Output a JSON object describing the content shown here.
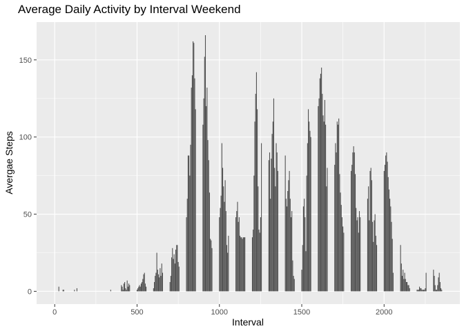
{
  "chart_data": {
    "type": "bar",
    "title": "Average Daily Activity by Interval Weekend",
    "xlabel": "Interval",
    "ylabel": "Avergae Steps",
    "xlim": [
      -110,
      2460
    ],
    "ylim": [
      -8.3,
      174.5
    ],
    "x_ticks": [
      0,
      500,
      1000,
      1500,
      2000
    ],
    "y_ticks": [
      0,
      50,
      100,
      150
    ],
    "grid": true,
    "colors": {
      "bar": "#4d4d4d",
      "panel": "#ebebeb",
      "grid": "#ffffff"
    },
    "x": [
      0,
      5,
      10,
      15,
      20,
      25,
      30,
      35,
      40,
      45,
      50,
      55,
      100,
      105,
      110,
      115,
      120,
      125,
      130,
      135,
      140,
      145,
      150,
      155,
      200,
      205,
      210,
      215,
      220,
      225,
      230,
      235,
      240,
      245,
      250,
      255,
      300,
      305,
      310,
      315,
      320,
      325,
      330,
      335,
      340,
      345,
      350,
      355,
      400,
      405,
      410,
      415,
      420,
      425,
      430,
      435,
      440,
      445,
      450,
      455,
      500,
      505,
      510,
      515,
      520,
      525,
      530,
      535,
      540,
      545,
      550,
      555,
      600,
      605,
      610,
      615,
      620,
      625,
      630,
      635,
      640,
      645,
      650,
      655,
      700,
      705,
      710,
      715,
      720,
      725,
      730,
      735,
      740,
      745,
      750,
      755,
      800,
      805,
      810,
      815,
      820,
      825,
      830,
      835,
      840,
      845,
      850,
      855,
      900,
      905,
      910,
      915,
      920,
      925,
      930,
      935,
      940,
      945,
      950,
      955,
      1000,
      1005,
      1010,
      1015,
      1020,
      1025,
      1030,
      1035,
      1040,
      1045,
      1050,
      1055,
      1100,
      1105,
      1110,
      1115,
      1120,
      1125,
      1130,
      1135,
      1140,
      1145,
      1150,
      1155,
      1200,
      1205,
      1210,
      1215,
      1220,
      1225,
      1230,
      1235,
      1240,
      1245,
      1250,
      1255,
      1300,
      1305,
      1310,
      1315,
      1320,
      1325,
      1330,
      1335,
      1340,
      1345,
      1350,
      1355,
      1400,
      1405,
      1410,
      1415,
      1420,
      1425,
      1430,
      1435,
      1440,
      1445,
      1450,
      1455,
      1500,
      1505,
      1510,
      1515,
      1520,
      1525,
      1530,
      1535,
      1540,
      1545,
      1550,
      1555,
      1600,
      1605,
      1610,
      1615,
      1620,
      1625,
      1630,
      1635,
      1640,
      1645,
      1650,
      1655,
      1700,
      1705,
      1710,
      1715,
      1720,
      1725,
      1730,
      1735,
      1740,
      1745,
      1750,
      1755,
      1800,
      1805,
      1810,
      1815,
      1820,
      1825,
      1830,
      1835,
      1840,
      1845,
      1850,
      1855,
      1900,
      1905,
      1910,
      1915,
      1920,
      1925,
      1930,
      1935,
      1940,
      1945,
      1950,
      1955,
      2000,
      2005,
      2010,
      2015,
      2020,
      2025,
      2030,
      2035,
      2040,
      2045,
      2050,
      2055,
      2100,
      2105,
      2110,
      2115,
      2120,
      2125,
      2130,
      2135,
      2140,
      2145,
      2150,
      2155,
      2200,
      2205,
      2210,
      2215,
      2220,
      2225,
      2230,
      2235,
      2240,
      2245,
      2250,
      2255,
      2300,
      2305,
      2310,
      2315,
      2320,
      2325,
      2330,
      2335,
      2340,
      2345,
      2350,
      2355
    ],
    "values": [
      0,
      0,
      0,
      0,
      0,
      3,
      0,
      0,
      0,
      0,
      1,
      1,
      0,
      0,
      0,
      0,
      1,
      0,
      0,
      2,
      0,
      0,
      0,
      0,
      0,
      0,
      0,
      0,
      0,
      0,
      0,
      0,
      0,
      0,
      0,
      0,
      0,
      0,
      0,
      0,
      0,
      0,
      0,
      0,
      1,
      0,
      0,
      0,
      0,
      4,
      3,
      1,
      5,
      6,
      2,
      1,
      7,
      3,
      5,
      4,
      1,
      2,
      3,
      4,
      3,
      5,
      6,
      8,
      11,
      12,
      5,
      3,
      2,
      6,
      10,
      12,
      25,
      14,
      11,
      9,
      15,
      10,
      18,
      12,
      6,
      10,
      22,
      28,
      21,
      24,
      18,
      27,
      30,
      30,
      19,
      16,
      48,
      60,
      88,
      88,
      75,
      95,
      132,
      140,
      162,
      161,
      138,
      118,
      108,
      125,
      152,
      166,
      120,
      132,
      98,
      85,
      64,
      34,
      33,
      28,
      48,
      54,
      62,
      96,
      80,
      68,
      58,
      72,
      52,
      30,
      25,
      36,
      48,
      52,
      58,
      45,
      48,
      36,
      35,
      35,
      34,
      35,
      35,
      35,
      35,
      40,
      75,
      110,
      128,
      142,
      118,
      68,
      40,
      38,
      48,
      96,
      85,
      90,
      60,
      86,
      102,
      110,
      125,
      80,
      68,
      96,
      90,
      78,
      88,
      60,
      55,
      65,
      72,
      78,
      60,
      48,
      52,
      20,
      10,
      8,
      14,
      30,
      55,
      60,
      48,
      26,
      75,
      96,
      118,
      110,
      104,
      100,
      120,
      125,
      138,
      141,
      145,
      128,
      114,
      110,
      124,
      108,
      68,
      80,
      82,
      96,
      90,
      110,
      108,
      112,
      76,
      64,
      56,
      48,
      42,
      38,
      78,
      82,
      90,
      94,
      90,
      76,
      54,
      46,
      48,
      38,
      52,
      48,
      60,
      68,
      46,
      78,
      80,
      72,
      45,
      32,
      46,
      50,
      36,
      30,
      78,
      82,
      88,
      90,
      84,
      74,
      66,
      60,
      55,
      45,
      34,
      12,
      30,
      18,
      10,
      14,
      8,
      12,
      8,
      6,
      6,
      4,
      4,
      2,
      1,
      1,
      1,
      3,
      2,
      2,
      1,
      1,
      1,
      1,
      2,
      12,
      14,
      10,
      4,
      1,
      1,
      4,
      9,
      12,
      6,
      2,
      1,
      0
    ]
  }
}
